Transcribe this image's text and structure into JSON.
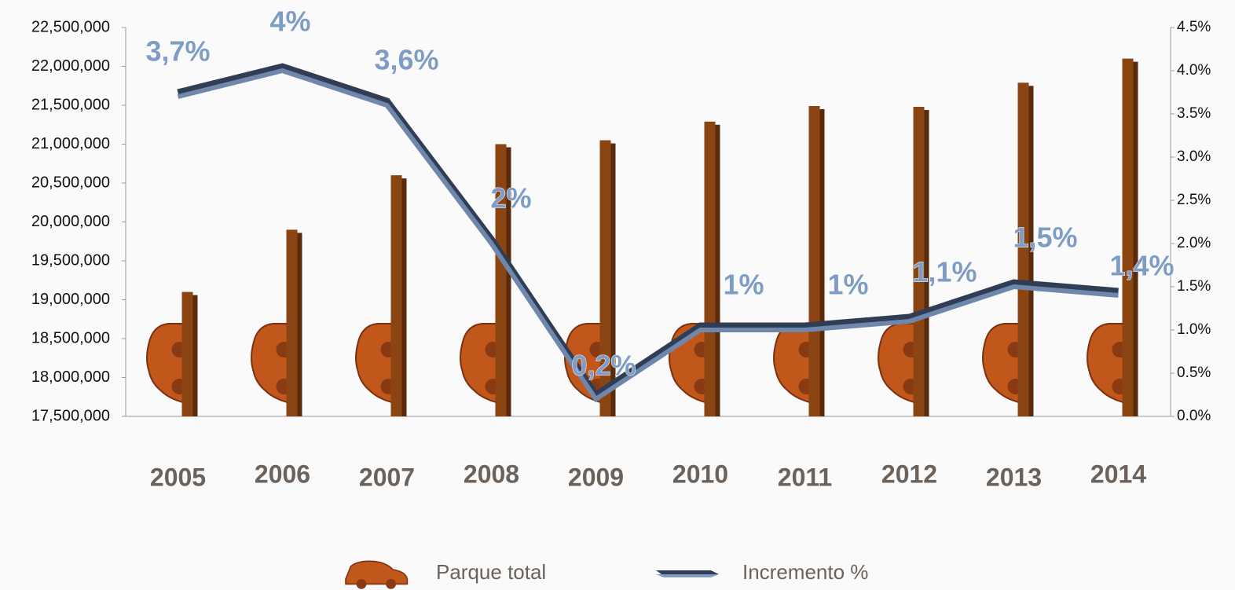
{
  "chart_data": {
    "type": "bar",
    "categories": [
      "2005",
      "2006",
      "2007",
      "2008",
      "2009",
      "2010",
      "2011",
      "2012",
      "2013",
      "2014"
    ],
    "series": [
      {
        "name": "Parque total",
        "type": "bar",
        "color": "#8b4513",
        "values": [
          19100000,
          19900000,
          20600000,
          21000000,
          21050000,
          21290000,
          21490000,
          21480000,
          21790000,
          22100000
        ]
      },
      {
        "name": "Incremento %",
        "type": "line",
        "axis": "y2",
        "color": "#6f87aa",
        "values": [
          3.7,
          4,
          3.6,
          2,
          0.2,
          1,
          1,
          1.1,
          1.5,
          1.4
        ],
        "value_labels": [
          "3,7%",
          "4%",
          "3,6%",
          "2%",
          "0,2%",
          "1%",
          "1%",
          "1,1%",
          "1,5%",
          "1,4%"
        ]
      }
    ],
    "ylim": [
      17500000,
      22500000
    ],
    "yticks": [
      {
        "value": 17500000,
        "label": "17,500,000"
      },
      {
        "value": 18000000,
        "label": "18,000,000"
      },
      {
        "value": 18500000,
        "label": "18,500,000"
      },
      {
        "value": 19000000,
        "label": "19,000,000"
      },
      {
        "value": 19500000,
        "label": "19,500,000"
      },
      {
        "value": 20000000,
        "label": "20,000,000"
      },
      {
        "value": 20500000,
        "label": "20,500,000"
      },
      {
        "value": 21000000,
        "label": "21,000,000"
      },
      {
        "value": 21500000,
        "label": "21,500,000"
      },
      {
        "value": 22000000,
        "label": "22,000,000"
      },
      {
        "value": 22500000,
        "label": "22,500,000"
      }
    ],
    "y2lim": [
      0,
      4.5
    ],
    "y2ticks": [
      {
        "value": 0,
        "label": "0.0%"
      },
      {
        "value": 0.5,
        "label": "0.5%"
      },
      {
        "value": 1,
        "label": "1.0%"
      },
      {
        "value": 1.5,
        "label": "1.5%"
      },
      {
        "value": 2,
        "label": "2.0%"
      },
      {
        "value": 2.5,
        "label": "2.5%"
      },
      {
        "value": 3,
        "label": "3.0%"
      },
      {
        "value": 3.5,
        "label": "3.5%"
      },
      {
        "value": 4,
        "label": "4.0%"
      },
      {
        "value": 4.5,
        "label": "4.5%"
      }
    ],
    "grid": false,
    "legend": "bottom"
  }
}
